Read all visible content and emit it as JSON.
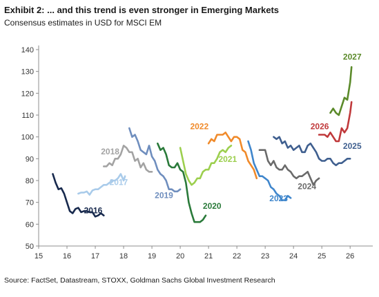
{
  "header": {
    "title": "Exhibit 2: ... and this trend is even stronger in Emerging Markets",
    "subtitle": "Consensus estimates in USD for MSCI EM"
  },
  "footer": {
    "source": "Source: FactSet, Datastream, STOXX, Goldman Sachs Global Investment Research"
  },
  "chart_data": {
    "type": "line",
    "title": "Exhibit 2: ... and this trend is even stronger in Emerging Markets",
    "subtitle": "Consensus estimates in USD for MSCI EM",
    "xlabel": "",
    "ylabel": "",
    "xlim": [
      15,
      26.8
    ],
    "ylim": [
      50,
      140
    ],
    "x_ticks": [
      15,
      16,
      17,
      18,
      19,
      20,
      21,
      22,
      23,
      24,
      25,
      26
    ],
    "y_ticks": [
      50,
      60,
      70,
      80,
      90,
      100,
      110,
      120,
      130,
      140
    ],
    "grid": false,
    "legend": "none",
    "series": [
      {
        "name": "2016",
        "color": "#17294d",
        "label_at": [
          16.6,
          65
        ],
        "points": [
          [
            15.5,
            83
          ],
          [
            15.6,
            79
          ],
          [
            15.7,
            76
          ],
          [
            15.8,
            76.5
          ],
          [
            15.9,
            74
          ],
          [
            16.0,
            70
          ],
          [
            16.1,
            66
          ],
          [
            16.2,
            65
          ],
          [
            16.3,
            67
          ],
          [
            16.4,
            67.5
          ],
          [
            16.5,
            65.5
          ],
          [
            16.6,
            66
          ],
          [
            16.7,
            66
          ],
          [
            16.8,
            65.5
          ],
          [
            16.9,
            65.5
          ],
          [
            17.0,
            63.5
          ],
          [
            17.1,
            64
          ],
          [
            17.2,
            65
          ],
          [
            17.3,
            64
          ]
        ]
      },
      {
        "name": "2017",
        "color": "#a9cbea",
        "label_at": [
          17.5,
          78
        ],
        "points": [
          [
            16.4,
            74
          ],
          [
            16.5,
            74.5
          ],
          [
            16.6,
            74.5
          ],
          [
            16.7,
            75
          ],
          [
            16.8,
            73.5
          ],
          [
            16.9,
            75.5
          ],
          [
            17.0,
            76
          ],
          [
            17.1,
            76
          ],
          [
            17.2,
            77
          ],
          [
            17.3,
            78
          ],
          [
            17.4,
            78
          ],
          [
            17.5,
            79
          ],
          [
            17.6,
            80
          ],
          [
            17.7,
            80
          ],
          [
            17.8,
            81
          ],
          [
            17.9,
            83
          ],
          [
            18.0,
            80
          ],
          [
            18.05,
            82
          ]
        ]
      },
      {
        "name": "2018",
        "color": "#a3a3a3",
        "label_at": [
          17.2,
          92
        ],
        "points": [
          [
            17.3,
            86.5
          ],
          [
            17.4,
            86.5
          ],
          [
            17.5,
            88
          ],
          [
            17.6,
            87
          ],
          [
            17.7,
            90
          ],
          [
            17.8,
            90
          ],
          [
            17.9,
            92
          ],
          [
            18.0,
            96
          ],
          [
            18.1,
            95
          ],
          [
            18.2,
            93
          ],
          [
            18.3,
            93
          ],
          [
            18.4,
            89
          ],
          [
            18.5,
            90
          ],
          [
            18.6,
            86
          ],
          [
            18.7,
            88
          ],
          [
            18.8,
            85
          ],
          [
            18.9,
            84
          ],
          [
            19.0,
            84
          ]
        ]
      },
      {
        "name": "2019",
        "color": "#6f8ebe",
        "label_at": [
          19.1,
          72
        ],
        "points": [
          [
            18.2,
            104
          ],
          [
            18.3,
            100
          ],
          [
            18.4,
            101
          ],
          [
            18.5,
            98
          ],
          [
            18.6,
            94
          ],
          [
            18.7,
            93
          ],
          [
            18.8,
            92
          ],
          [
            18.9,
            96
          ],
          [
            19.0,
            91
          ],
          [
            19.1,
            89
          ],
          [
            19.2,
            85
          ],
          [
            19.3,
            83
          ],
          [
            19.4,
            82
          ],
          [
            19.5,
            80
          ],
          [
            19.6,
            76
          ],
          [
            19.7,
            76
          ],
          [
            19.8,
            75
          ],
          [
            19.9,
            75
          ],
          [
            20.0,
            76
          ]
        ]
      },
      {
        "name": "2020",
        "color": "#2a7a3a",
        "label_at": [
          20.8,
          67
        ],
        "points": [
          [
            19.2,
            97
          ],
          [
            19.3,
            94
          ],
          [
            19.4,
            95
          ],
          [
            19.5,
            92
          ],
          [
            19.6,
            87
          ],
          [
            19.7,
            86
          ],
          [
            19.8,
            86
          ],
          [
            19.9,
            88
          ],
          [
            20.0,
            85
          ],
          [
            20.1,
            84
          ],
          [
            20.2,
            79
          ],
          [
            20.3,
            70
          ],
          [
            20.4,
            65
          ],
          [
            20.5,
            61
          ],
          [
            20.6,
            61
          ],
          [
            20.7,
            61
          ],
          [
            20.8,
            62
          ],
          [
            20.9,
            64
          ]
        ]
      },
      {
        "name": "2021",
        "color": "#9ccf4e",
        "label_at": [
          21.35,
          88.5
        ],
        "points": [
          [
            20.0,
            95
          ],
          [
            20.1,
            89
          ],
          [
            20.2,
            83
          ],
          [
            20.3,
            80
          ],
          [
            20.4,
            78
          ],
          [
            20.5,
            79
          ],
          [
            20.6,
            81
          ],
          [
            20.7,
            81
          ],
          [
            20.8,
            84
          ],
          [
            20.9,
            85
          ],
          [
            21.0,
            85
          ],
          [
            21.1,
            88
          ],
          [
            21.2,
            88
          ],
          [
            21.3,
            90
          ],
          [
            21.4,
            93
          ],
          [
            21.5,
            94
          ],
          [
            21.6,
            93
          ],
          [
            21.7,
            95
          ],
          [
            21.8,
            96
          ]
        ]
      },
      {
        "name": "2022",
        "color": "#f08a2a",
        "label_at": [
          20.35,
          103.5
        ],
        "points": [
          [
            21.0,
            97
          ],
          [
            21.1,
            99
          ],
          [
            21.2,
            98
          ],
          [
            21.3,
            101
          ],
          [
            21.4,
            101
          ],
          [
            21.5,
            101
          ],
          [
            21.6,
            102
          ],
          [
            21.7,
            100
          ],
          [
            21.8,
            98
          ],
          [
            21.9,
            100
          ],
          [
            22.0,
            100
          ],
          [
            22.1,
            99
          ],
          [
            22.2,
            94
          ],
          [
            22.3,
            93
          ],
          [
            22.4,
            89
          ],
          [
            22.5,
            87
          ],
          [
            22.6,
            85
          ],
          [
            22.7,
            81
          ]
        ]
      },
      {
        "name": "2023",
        "color": "#3f86cc",
        "label_at": [
          23.15,
          70.5
        ],
        "points": [
          [
            22.4,
            98
          ],
          [
            22.5,
            94
          ],
          [
            22.6,
            88
          ],
          [
            22.7,
            85
          ],
          [
            22.8,
            82
          ],
          [
            22.9,
            82
          ],
          [
            23.0,
            81
          ],
          [
            23.1,
            80
          ],
          [
            23.2,
            77
          ],
          [
            23.3,
            76
          ],
          [
            23.4,
            74
          ],
          [
            23.5,
            73
          ],
          [
            23.6,
            71
          ],
          [
            23.7,
            71
          ],
          [
            23.8,
            73
          ],
          [
            23.9,
            72
          ]
        ]
      },
      {
        "name": "2024",
        "color": "#6a6a6a",
        "label_at": [
          24.15,
          76
        ],
        "points": [
          [
            22.8,
            94
          ],
          [
            22.9,
            94
          ],
          [
            23.0,
            94
          ],
          [
            23.1,
            89
          ],
          [
            23.2,
            87
          ],
          [
            23.3,
            89
          ],
          [
            23.4,
            86
          ],
          [
            23.5,
            85
          ],
          [
            23.6,
            85
          ],
          [
            23.7,
            87
          ],
          [
            23.8,
            85
          ],
          [
            23.9,
            84
          ],
          [
            24.0,
            82
          ],
          [
            24.1,
            81
          ],
          [
            24.2,
            82
          ],
          [
            24.3,
            82
          ],
          [
            24.4,
            83
          ],
          [
            24.5,
            84
          ],
          [
            24.6,
            81
          ],
          [
            24.7,
            78
          ],
          [
            24.8,
            80
          ],
          [
            24.9,
            81
          ]
        ]
      },
      {
        "name": "2025",
        "color": "#3f5f8f",
        "label_at": [
          25.75,
          94.5
        ],
        "points": [
          [
            23.3,
            100
          ],
          [
            23.4,
            99
          ],
          [
            23.5,
            100
          ],
          [
            23.6,
            97
          ],
          [
            23.7,
            98
          ],
          [
            23.8,
            95
          ],
          [
            23.9,
            96
          ],
          [
            24.0,
            94
          ],
          [
            24.1,
            95
          ],
          [
            24.2,
            96
          ],
          [
            24.3,
            93
          ],
          [
            24.4,
            93
          ],
          [
            24.5,
            96
          ],
          [
            24.6,
            97
          ],
          [
            24.7,
            95
          ],
          [
            24.8,
            93
          ],
          [
            24.9,
            90
          ],
          [
            25.0,
            89
          ],
          [
            25.1,
            89
          ],
          [
            25.2,
            90
          ],
          [
            25.3,
            90
          ],
          [
            25.4,
            88
          ],
          [
            25.5,
            87
          ],
          [
            25.6,
            88
          ],
          [
            25.7,
            88
          ],
          [
            25.8,
            89
          ],
          [
            25.9,
            90
          ],
          [
            26.0,
            90
          ]
        ]
      },
      {
        "name": "2026",
        "color": "#c0393b",
        "label_at": [
          24.6,
          103.5
        ],
        "points": [
          [
            24.9,
            101
          ],
          [
            25.0,
            101
          ],
          [
            25.1,
            101
          ],
          [
            25.2,
            100
          ],
          [
            25.3,
            102
          ],
          [
            25.4,
            100
          ],
          [
            25.5,
            98
          ],
          [
            25.6,
            98
          ],
          [
            25.7,
            104
          ],
          [
            25.8,
            102
          ],
          [
            25.9,
            104
          ],
          [
            26.0,
            111
          ],
          [
            26.05,
            116
          ]
        ]
      },
      {
        "name": "2027",
        "color": "#5b8a2a",
        "label_at": [
          25.75,
          135.5
        ],
        "points": [
          [
            25.3,
            111
          ],
          [
            25.4,
            113
          ],
          [
            25.5,
            111
          ],
          [
            25.6,
            110
          ],
          [
            25.7,
            114
          ],
          [
            25.8,
            118
          ],
          [
            25.9,
            117
          ],
          [
            26.0,
            125
          ],
          [
            26.05,
            132
          ]
        ]
      }
    ]
  }
}
